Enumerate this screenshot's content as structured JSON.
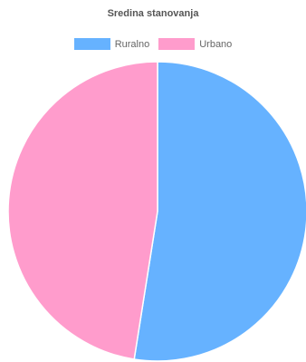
{
  "chart_data": {
    "type": "pie",
    "title": "Sredina stanovanja",
    "legend_position": "top",
    "categories": [
      "Ruralno",
      "Urbano"
    ],
    "values": [
      52.5,
      47.5
    ],
    "unit": "%",
    "colors": [
      "#66b2ff",
      "#ff9ccc"
    ],
    "border_color": "#ffffff"
  }
}
